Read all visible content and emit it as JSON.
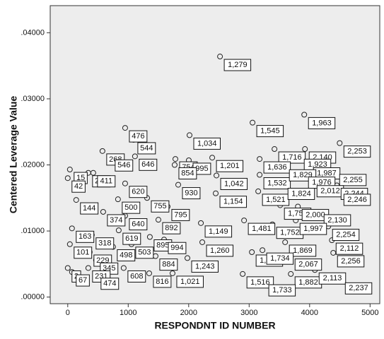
{
  "chart_data": {
    "type": "scatter",
    "y_label": "Centered Leverage Value",
    "x_label": "RESPONDNT ID NUMBER",
    "xlim": [
      -290,
      5160
    ],
    "ylim": [
      -0.001,
      0.0441
    ],
    "xticks": [
      0,
      1000,
      2000,
      3000,
      4000,
      5000
    ],
    "yticks": [
      {
        "value": 0,
        "label": ".00000"
      },
      {
        "value": 0.01,
        "label": ".01000"
      },
      {
        "value": 0.02,
        "label": ".02000"
      },
      {
        "value": 0.03,
        "label": ".03000"
      },
      {
        "value": 0.04,
        "label": ".04000"
      }
    ],
    "grid": false,
    "color": "#222222",
    "x": [
      2518,
      3911,
      3056,
      4497,
      949,
      1089,
      2014,
      574,
      1780,
      3419,
      3923,
      3841,
      35,
      0,
      340,
      714,
      1112,
      2002,
      2389,
      3173,
      1768,
      3993,
      4426,
      422,
      949,
      2459,
      3173,
      3595,
      1827,
      3911,
      4052,
      4450,
      140,
      831,
      1312,
      2447,
      3150,
      3572,
      4497,
      1651,
      586,
      949,
      3513,
      3806,
      1499,
      4169,
      70,
      2202,
      2916,
      3384,
      3771,
      398,
      843,
      1358,
      4309,
      35,
      749,
      1054,
      1593,
      2225,
      3595,
      4368,
      363,
      3045,
      3220,
      468,
      1452,
      1979,
      3689,
      4391,
      0,
      70,
      340,
      480,
      925,
      1347,
      1733,
      2893,
      3689,
      4087,
      3255,
      4520
    ],
    "values": [
      0.0364,
      0.0276,
      0.0264,
      0.0233,
      0.0256,
      0.0238,
      0.0245,
      0.0221,
      0.0209,
      0.0224,
      0.0224,
      0.0213,
      0.0193,
      0.018,
      0.0188,
      0.0212,
      0.0213,
      0.0207,
      0.0211,
      0.0209,
      0.02,
      0.02,
      0.019,
      0.0188,
      0.0172,
      0.0184,
      0.0185,
      0.0197,
      0.017,
      0.0186,
      0.0173,
      0.0169,
      0.0147,
      0.0148,
      0.015,
      0.0157,
      0.016,
      0.0169,
      0.016,
      0.0137,
      0.0129,
      0.0123,
      0.0139,
      0.0137,
      0.0117,
      0.0129,
      0.0104,
      0.0112,
      0.0116,
      0.011,
      0.0116,
      0.0094,
      0.0101,
      0.0091,
      0.0107,
      0.008,
      0.0076,
      0.008,
      0.0087,
      0.0083,
      0.0083,
      0.0086,
      0.0068,
      0.0068,
      0.0071,
      0.0056,
      0.0062,
      0.0059,
      0.0062,
      0.0067,
      0.0044,
      0.0038,
      0.0044,
      0.0033,
      0.0044,
      0.0036,
      0.0036,
      0.0035,
      0.0035,
      0.0041,
      0.0023,
      0.0026
    ],
    "point_labels": [
      "1,279",
      "1,963",
      "1,545",
      "2,253",
      "476",
      "544",
      "1,034",
      "268",
      "754",
      "1,716",
      "2,140",
      "1,923",
      "15",
      "42",
      "232",
      "546",
      "646",
      "995",
      "1,201",
      "1,636",
      "854",
      "1,987",
      "2,255",
      "411",
      "620",
      "1,042",
      "1,532",
      "1,829",
      "930",
      "1,976",
      "2,012",
      "2,244",
      "144",
      "500",
      "755",
      "1,154",
      "1,521",
      "1,824",
      "2,246",
      "795",
      "374",
      "640",
      "1,750",
      "2,000",
      "892",
      "2,130",
      "163",
      "1,149",
      "1,481",
      "1,752",
      "1,997",
      "318",
      "619",
      "895",
      "2,254",
      "101",
      "498",
      "503",
      "994",
      "1,260",
      "1,869",
      "2,112",
      "229",
      "1,490",
      "1,734",
      "345",
      "884",
      "1,243",
      "2,067",
      "2,256",
      "2",
      "67",
      "231",
      "474",
      "608",
      "816",
      "1,021",
      "1,516",
      "1,882",
      "2,113",
      "1,733",
      "2,237"
    ]
  }
}
